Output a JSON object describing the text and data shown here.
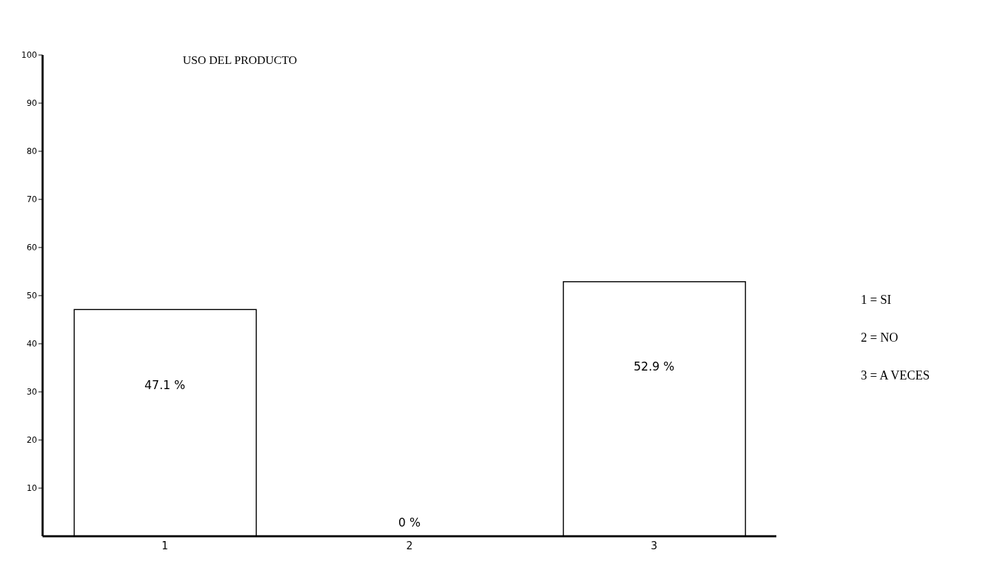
{
  "chart_data": {
    "type": "bar",
    "title": "USO DEL PRODUCTO",
    "categories": [
      "1",
      "2",
      "3"
    ],
    "values": [
      47.1,
      0,
      52.9
    ],
    "value_labels": [
      "47.1 %",
      "0 %",
      "52.9 %"
    ],
    "color": "#ffffff",
    "ylim": [
      0,
      100
    ],
    "yticks": [
      10,
      20,
      30,
      40,
      50,
      60,
      70,
      80,
      90,
      100
    ],
    "grid": false,
    "annotations": [
      "1 = SI",
      "2 = NO",
      "3 = A VECES"
    ]
  }
}
